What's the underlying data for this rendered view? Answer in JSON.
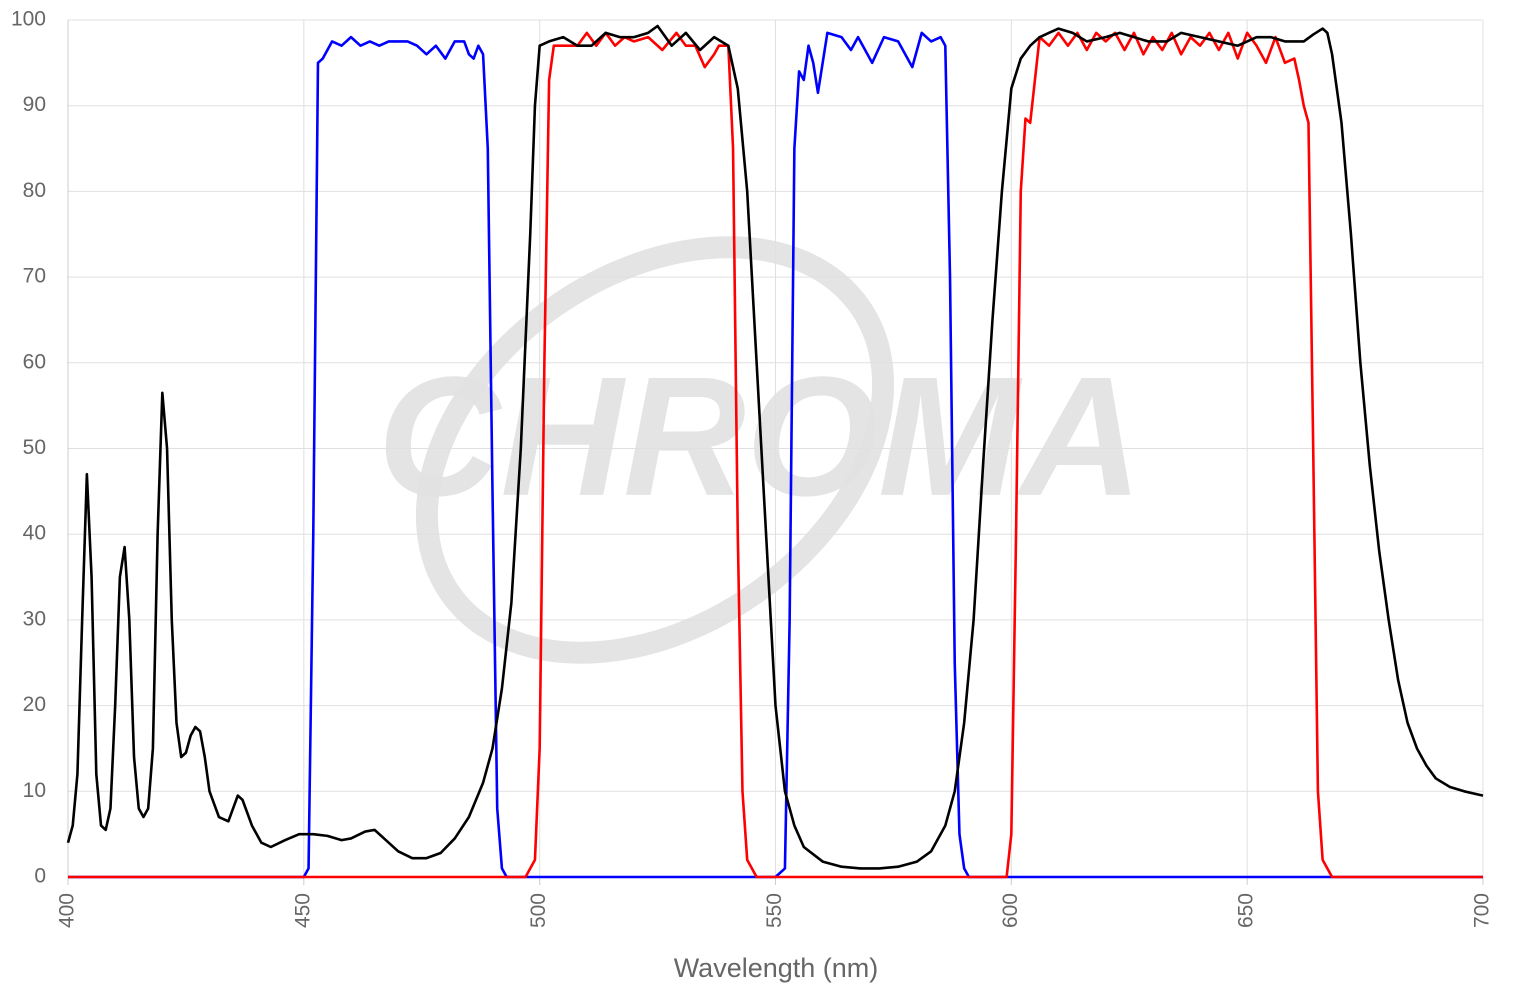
{
  "chart_data": {
    "type": "line",
    "xlabel": "Wavelength (nm)",
    "watermark": "CHROMA",
    "xlim": [
      400,
      700
    ],
    "xticks": [
      400,
      450,
      500,
      550,
      600,
      650,
      700
    ],
    "ylim": [
      0,
      100
    ],
    "yticks": [
      0,
      10,
      20,
      30,
      40,
      50,
      60,
      70,
      80,
      90,
      100
    ],
    "grid": true,
    "series": [
      {
        "color": "#0000ff",
        "x": [
          400,
          450,
          451,
          452,
          453,
          454,
          456,
          458,
          460,
          462,
          464,
          466,
          468,
          470,
          472,
          474,
          476,
          478,
          480,
          482,
          484,
          485,
          486,
          487,
          488,
          489,
          490,
          491,
          492,
          493,
          550,
          552,
          553,
          554,
          555,
          556,
          557,
          558,
          559,
          561,
          564,
          566,
          567.5,
          570.5,
          573,
          576,
          579,
          581,
          583,
          585,
          586,
          587,
          588,
          589,
          590,
          591,
          700
        ],
        "values": [
          0,
          0,
          1,
          40,
          95,
          95.5,
          97.5,
          97,
          98,
          97,
          97.5,
          97,
          97.5,
          97.5,
          97.5,
          97,
          96,
          97,
          95.5,
          97.5,
          97.5,
          96,
          95.5,
          97,
          96,
          85,
          45,
          8,
          1,
          0,
          0,
          1,
          30,
          85,
          94,
          93,
          97,
          95,
          91.5,
          98.5,
          98,
          96.5,
          98,
          95,
          98,
          97.5,
          94.5,
          98.5,
          97.5,
          98,
          97,
          70,
          25,
          5,
          1,
          0,
          0
        ]
      },
      {
        "color": "#ff0000",
        "x": [
          400,
          497,
          499,
          500,
          501,
          502,
          503,
          506,
          508,
          510,
          512,
          514,
          516,
          518,
          520,
          523,
          526,
          529,
          531,
          533,
          535,
          537,
          538,
          540,
          541,
          542,
          543,
          544,
          546,
          599,
          600,
          601,
          602,
          603,
          604,
          605,
          606,
          608,
          610,
          612,
          614,
          616,
          618,
          620,
          622,
          624,
          626,
          628,
          630,
          632,
          634,
          636,
          638,
          640,
          642,
          644,
          646,
          648,
          650,
          652,
          654,
          656,
          658,
          660,
          661,
          662,
          663,
          664,
          665,
          666,
          668,
          700
        ],
        "values": [
          0,
          0,
          2,
          15,
          60,
          93,
          97,
          97,
          97,
          98.5,
          97,
          98.5,
          97,
          98,
          97.5,
          98,
          96.5,
          98.5,
          97,
          97,
          94.5,
          96,
          97,
          97,
          85,
          40,
          10,
          2,
          0,
          0,
          5,
          40,
          80,
          88.5,
          88,
          93,
          98,
          97,
          98.5,
          97,
          98.5,
          96.5,
          98.5,
          97.5,
          98.5,
          96.5,
          98.5,
          96,
          98,
          96.5,
          98.5,
          96,
          98,
          97,
          98.5,
          96.5,
          98.5,
          95.5,
          98.5,
          97,
          95,
          98,
          95,
          95.5,
          93,
          90,
          88,
          50,
          10,
          2,
          0,
          0
        ]
      },
      {
        "color": "#000000",
        "x": [
          400,
          401,
          402,
          403,
          404,
          405,
          406,
          407,
          408,
          409,
          410,
          411,
          412,
          413,
          414,
          415,
          416,
          417,
          418,
          419,
          420,
          421,
          422,
          423,
          424,
          425,
          426,
          427,
          428,
          429,
          430,
          432,
          434,
          435,
          436,
          437,
          439,
          441,
          443,
          446,
          449,
          452,
          455,
          458,
          460,
          463,
          465,
          467,
          470,
          473,
          476,
          479,
          482,
          485,
          488,
          490,
          492,
          494,
          496,
          498,
          499,
          500,
          502,
          505,
          508,
          511,
          514,
          517,
          520,
          523,
          525,
          528,
          531,
          534,
          537,
          540,
          542,
          544,
          546,
          548,
          550,
          552,
          554,
          556,
          560,
          564,
          568,
          572,
          576,
          580,
          583,
          586,
          588,
          590,
          592,
          594,
          596,
          598,
          600,
          602,
          604,
          606,
          608,
          610,
          613,
          616,
          620,
          623,
          626,
          629,
          633,
          636,
          640,
          644,
          648,
          652,
          655,
          658,
          662,
          664,
          666,
          667,
          668,
          670,
          672,
          674,
          676,
          678,
          680,
          682,
          684,
          686,
          688,
          690,
          693,
          696,
          700
        ],
        "values": [
          4,
          6,
          12,
          30,
          47,
          35,
          12,
          6,
          5.5,
          8,
          20,
          35,
          38.5,
          30,
          14,
          8,
          7,
          8,
          15,
          40,
          56.5,
          50,
          30,
          18,
          14,
          14.5,
          16.5,
          17.5,
          17,
          14,
          10,
          7,
          6.5,
          8,
          9.5,
          9,
          6,
          4,
          3.5,
          4.3,
          5,
          5,
          4.8,
          4.3,
          4.5,
          5.3,
          5.5,
          4.5,
          3,
          2.2,
          2.2,
          2.8,
          4.5,
          7,
          11,
          15,
          22,
          32,
          50,
          75,
          90,
          97,
          97.5,
          98,
          97,
          97,
          98.5,
          98,
          98,
          98.5,
          99.3,
          97,
          98.5,
          96.5,
          98,
          97,
          92,
          80,
          60,
          40,
          20,
          10,
          6,
          3.5,
          1.8,
          1.2,
          1,
          1,
          1.2,
          1.8,
          3,
          6,
          10,
          18,
          30,
          48,
          65,
          80,
          92,
          95.5,
          97,
          98,
          98.5,
          99,
          98.5,
          97.5,
          98,
          98.5,
          98,
          97.5,
          97.5,
          98.5,
          98,
          97.5,
          97,
          98,
          98,
          97.5,
          97.5,
          98.3,
          99,
          98.5,
          96,
          88,
          75,
          60,
          48,
          38,
          30,
          23,
          18,
          15,
          13,
          11.5,
          10.5,
          10,
          9.5
        ]
      }
    ]
  }
}
